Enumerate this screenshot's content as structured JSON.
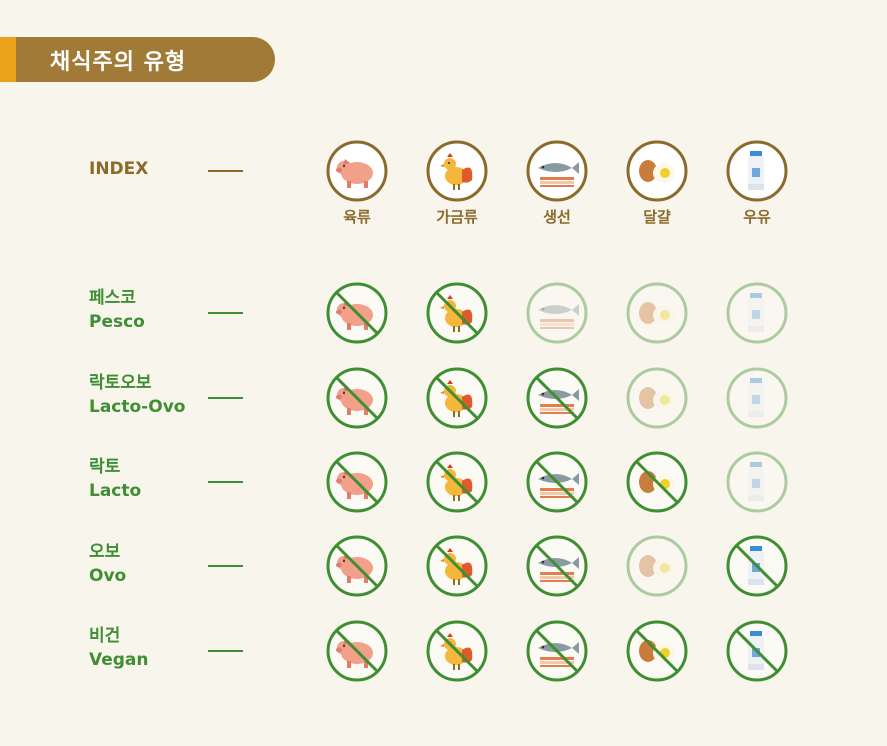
{
  "header": {
    "title": "채식주의 유형"
  },
  "index": {
    "label": "INDEX",
    "categories": [
      "육류",
      "가금류",
      "생선",
      "달걀",
      "우유"
    ]
  },
  "icons": [
    "pig-icon",
    "chicken-icon",
    "fish-icon",
    "egg-icon",
    "milk-icon"
  ],
  "rows": [
    {
      "label_ko": "페스코",
      "label_en": "Pesco",
      "excluded": [
        true,
        true,
        false,
        false,
        false
      ]
    },
    {
      "label_ko": "락토오보",
      "label_en": "Lacto-Ovo",
      "excluded": [
        true,
        true,
        true,
        false,
        false
      ]
    },
    {
      "label_ko": "락토",
      "label_en": "Lacto",
      "excluded": [
        true,
        true,
        true,
        true,
        false
      ]
    },
    {
      "label_ko": "오보",
      "label_en": "Ovo",
      "excluded": [
        true,
        true,
        true,
        false,
        true
      ]
    },
    {
      "label_ko": "비건",
      "label_en": "Vegan",
      "excluded": [
        true,
        true,
        true,
        true,
        true
      ]
    }
  ],
  "colors": {
    "header_bg": "#a07a36",
    "header_accent": "#e9a21a",
    "index_brown": "#8b6a2a",
    "green": "#3f8e32",
    "background": "#f8f5ed"
  }
}
